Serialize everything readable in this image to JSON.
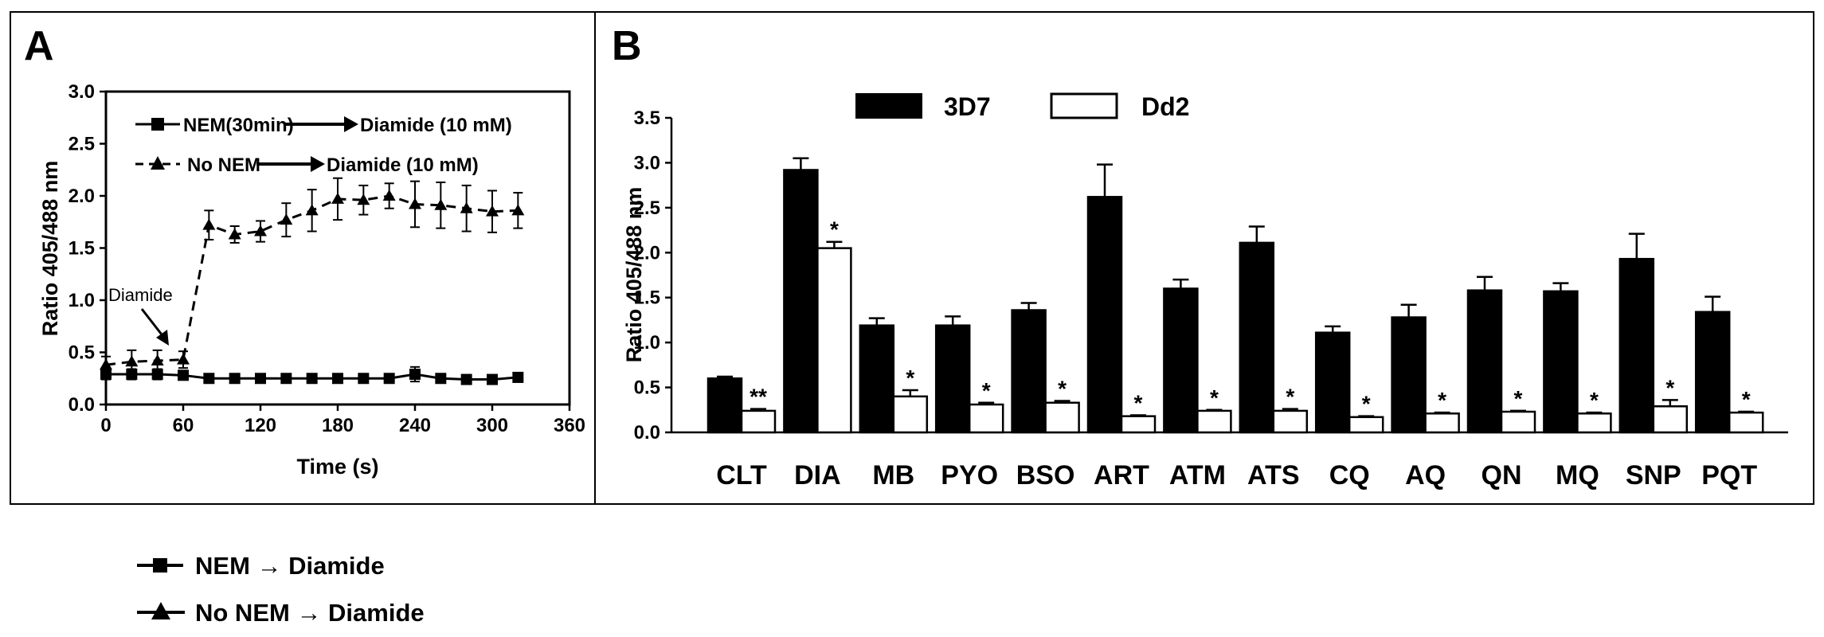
{
  "panel_a": {
    "label": "A",
    "legend": [
      {
        "marker": "square",
        "text_before": "NEM(30min)",
        "text_after": "Diamide (10 mM)"
      },
      {
        "marker": "triangle",
        "text_before": "No NEM",
        "text_after": "Diamide (10 mM)"
      }
    ],
    "annotation": "Diamide"
  },
  "panel_b": {
    "label": "B",
    "legend": [
      {
        "name": "3D7",
        "color": "#000000"
      },
      {
        "name": "Dd2",
        "color": "#ffffff"
      }
    ]
  },
  "bottom_legend": [
    {
      "marker": "square",
      "text": "NEM → Diamide"
    },
    {
      "marker": "triangle",
      "text": "No NEM → Diamide"
    }
  ],
  "chart_data": [
    {
      "type": "line",
      "xlabel": "Time (s)",
      "ylabel": "Ratio 405/488 nm",
      "xlim": [
        0,
        360
      ],
      "ylim": [
        0,
        3.0
      ],
      "xticks": [
        "0",
        "60",
        "120",
        "180",
        "240",
        "300",
        "360"
      ],
      "yticks": [
        "0.0",
        "0.5",
        "1.0",
        "1.5",
        "2.0",
        "2.5",
        "3.0"
      ],
      "series": [
        {
          "name": "NEM(30min) → Diamide (10 mM)",
          "marker": "square",
          "line": "solid",
          "x": [
            0,
            20,
            40,
            60,
            80,
            100,
            120,
            140,
            160,
            180,
            200,
            220,
            240,
            260,
            280,
            300,
            320
          ],
          "y": [
            0.29,
            0.29,
            0.29,
            0.28,
            0.25,
            0.25,
            0.25,
            0.25,
            0.25,
            0.25,
            0.25,
            0.25,
            0.29,
            0.25,
            0.24,
            0.24,
            0.26
          ],
          "err": [
            0.05,
            0.05,
            0.05,
            0.04,
            0.03,
            0.03,
            0.03,
            0.03,
            0.03,
            0.03,
            0.03,
            0.03,
            0.07,
            0.03,
            0.03,
            0.03,
            0.03
          ]
        },
        {
          "name": "No NEM → Diamide (10 mM)",
          "marker": "triangle",
          "line": "dashed",
          "x": [
            0,
            20,
            40,
            60,
            80,
            100,
            120,
            140,
            160,
            180,
            200,
            220,
            240,
            260,
            280,
            300,
            320
          ],
          "y": [
            0.38,
            0.41,
            0.42,
            0.43,
            1.72,
            1.63,
            1.66,
            1.77,
            1.86,
            1.97,
            1.96,
            2.0,
            1.92,
            1.91,
            1.88,
            1.85,
            1.86
          ],
          "err": [
            0.08,
            0.11,
            0.1,
            0.08,
            0.14,
            0.08,
            0.1,
            0.16,
            0.2,
            0.2,
            0.14,
            0.12,
            0.22,
            0.22,
            0.22,
            0.2,
            0.17
          ]
        }
      ]
    },
    {
      "type": "bar",
      "ylabel": "Ratio 405/488 nm",
      "ylim": [
        0,
        3.5
      ],
      "yticks": [
        "0.0",
        "0.5",
        "1.0",
        "1.5",
        "2.0",
        "2.5",
        "3.0",
        "3.5"
      ],
      "categories": [
        "CLT",
        "DIA",
        "MB",
        "PYO",
        "BSO",
        "ART",
        "ATM",
        "ATS",
        "CQ",
        "AQ",
        "QN",
        "MQ",
        "SNP",
        "PQT"
      ],
      "series": [
        {
          "name": "3D7",
          "values": [
            0.6,
            2.92,
            1.19,
            1.19,
            1.36,
            2.62,
            1.6,
            2.11,
            1.11,
            1.28,
            1.58,
            1.57,
            1.93,
            1.34
          ],
          "err": [
            0.02,
            0.13,
            0.08,
            0.1,
            0.08,
            0.36,
            0.1,
            0.18,
            0.07,
            0.14,
            0.15,
            0.09,
            0.28,
            0.17
          ]
        },
        {
          "name": "Dd2",
          "values": [
            0.24,
            2.05,
            0.4,
            0.31,
            0.33,
            0.18,
            0.24,
            0.24,
            0.17,
            0.21,
            0.23,
            0.21,
            0.29,
            0.22
          ],
          "err": [
            0.02,
            0.07,
            0.07,
            0.02,
            0.02,
            0.01,
            0.01,
            0.02,
            0.01,
            0.01,
            0.01,
            0.01,
            0.07,
            0.01
          ],
          "significance": [
            "**",
            "*",
            "*",
            "*",
            "*",
            "*",
            "*",
            "*",
            "*",
            "*",
            "*",
            "*",
            "*",
            "*"
          ]
        }
      ]
    }
  ]
}
